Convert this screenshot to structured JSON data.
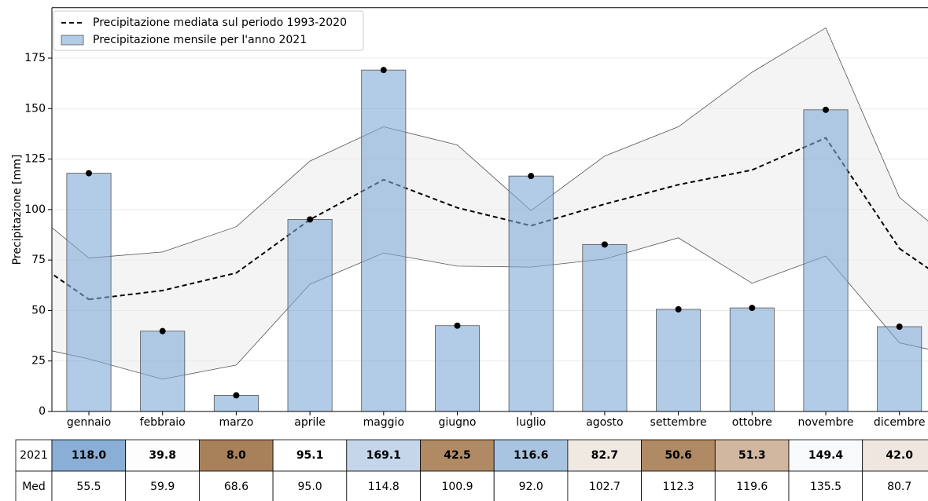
{
  "chart_data": {
    "type": "bar",
    "ylabel": "Precipitazione [mm]",
    "categories": [
      "gennaio",
      "febbraio",
      "marzo",
      "aprile",
      "maggio",
      "giugno",
      "luglio",
      "agosto",
      "settembre",
      "ottobre",
      "novembre",
      "dicembre"
    ],
    "ylim": [
      0,
      200
    ],
    "yticks": [
      0,
      25,
      50,
      75,
      100,
      125,
      150,
      175
    ],
    "grid": true,
    "legend": "upper left",
    "series": [
      {
        "type": "bar",
        "name": "Precipitazione mensile per l'anno 2021",
        "color": "#7fa8d6",
        "values": [
          118.0,
          39.8,
          8.0,
          95.1,
          169.1,
          42.5,
          116.6,
          82.7,
          50.6,
          51.3,
          149.4,
          42.0
        ],
        "value_labels": [
          "118.0",
          "39.8",
          "8.0",
          "95.1",
          "169.1",
          "42.5",
          "116.6",
          "82.7",
          "50.6",
          "51.3",
          "149.4",
          "42.0"
        ],
        "cell_colors": [
          "#8aaed6",
          "#fdfdfd",
          "#a8805a",
          "#ffffff",
          "#c5d6ea",
          "#b08a64",
          "#a9c4e0",
          "#f0e9e2",
          "#b08a64",
          "#d2b7a0",
          "#f7f9fc",
          "#efe7df"
        ]
      },
      {
        "type": "line",
        "name": "Precipitazione mediata sul periodo 1993-2020",
        "color": "#000000",
        "dashed": true,
        "values": [
          55.5,
          59.9,
          68.6,
          95.0,
          114.8,
          100.9,
          92.0,
          102.7,
          112.3,
          119.6,
          135.5,
          80.7
        ],
        "value_labels": [
          "55.5",
          "59.9",
          "68.6",
          "95.0",
          "114.8",
          "100.9",
          "92.0",
          "102.7",
          "112.3",
          "119.6",
          "135.5",
          "80.7"
        ]
      },
      {
        "type": "band",
        "color": "#ececec",
        "lower": [
          26,
          16,
          23,
          63,
          78.5,
          72,
          71.5,
          75.5,
          86,
          63.5,
          77,
          34
        ],
        "upper": [
          76,
          79,
          91.5,
          124,
          141,
          132,
          99.5,
          126.5,
          141,
          168,
          190,
          106
        ]
      }
    ],
    "table_row_labels": [
      "2021",
      "Med"
    ]
  }
}
